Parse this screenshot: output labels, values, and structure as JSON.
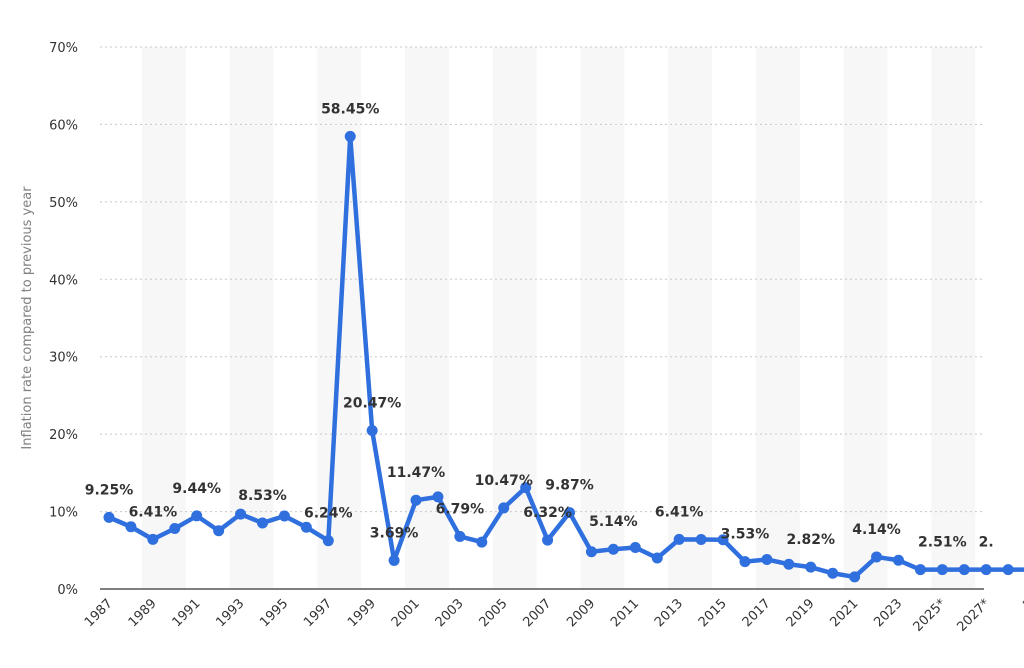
{
  "chart_data": {
    "type": "line",
    "ylabel": "Inflation rate compared to previous year",
    "xlabel": "",
    "ylim": [
      0,
      70
    ],
    "yticks": [
      0,
      10,
      20,
      30,
      40,
      50,
      60,
      70
    ],
    "ytick_suffix": "%",
    "grid": true,
    "categories": [
      "1987",
      "1988",
      "1989",
      "1990",
      "1991",
      "1992",
      "1993",
      "1994",
      "1995",
      "1996",
      "1997",
      "1998",
      "1999",
      "2000",
      "2001",
      "2002",
      "2003",
      "2004",
      "2005",
      "2006",
      "2007",
      "2008",
      "2009",
      "2010",
      "2011",
      "2012",
      "2013",
      "2014",
      "2015",
      "2016",
      "2017",
      "2018",
      "2019",
      "2020",
      "2021",
      "2022",
      "2023",
      "2024",
      "2025*",
      "2026*",
      "2027*",
      "2028*",
      "2029*"
    ],
    "xtick_labels": [
      "1987",
      "1989",
      "1991",
      "1993",
      "1995",
      "1997",
      "1999",
      "2001",
      "2003",
      "2005",
      "2007",
      "2009",
      "2011",
      "2013",
      "2015",
      "2017",
      "2019",
      "2021",
      "2023",
      "2025*",
      "2027*",
      "2"
    ],
    "series": [
      {
        "color": "#2f6fde",
        "values": [
          9.25,
          8.04,
          6.41,
          7.81,
          9.44,
          7.53,
          9.67,
          8.53,
          9.43,
          7.97,
          6.24,
          58.45,
          20.47,
          3.69,
          11.47,
          11.9,
          6.79,
          6.06,
          10.47,
          13.1,
          6.32,
          9.87,
          4.81,
          5.14,
          5.36,
          4.0,
          6.41,
          6.39,
          6.36,
          3.53,
          3.81,
          3.2,
          2.82,
          2.03,
          1.56,
          4.14,
          3.71,
          2.5,
          2.51,
          2.5,
          2.5,
          2.5,
          2.5
        ]
      }
    ],
    "data_labels": [
      {
        "index": 0,
        "text": "9.25%"
      },
      {
        "index": 2,
        "text": "6.41%"
      },
      {
        "index": 4,
        "text": "9.44%"
      },
      {
        "index": 7,
        "text": "8.53%"
      },
      {
        "index": 10,
        "text": "6.24%"
      },
      {
        "index": 11,
        "text": "58.45%"
      },
      {
        "index": 12,
        "text": "20.47%"
      },
      {
        "index": 13,
        "text": "3.69%"
      },
      {
        "index": 14,
        "text": "11.47%"
      },
      {
        "index": 16,
        "text": "6.79%"
      },
      {
        "index": 18,
        "text": "10.47%"
      },
      {
        "index": 20,
        "text": "6.32%"
      },
      {
        "index": 21,
        "text": "9.87%"
      },
      {
        "index": 23,
        "text": "5.14%"
      },
      {
        "index": 26,
        "text": "6.41%"
      },
      {
        "index": 29,
        "text": "3.53%"
      },
      {
        "index": 32,
        "text": "2.82%"
      },
      {
        "index": 35,
        "text": "4.14%"
      },
      {
        "index": 38,
        "text": "2.51%"
      },
      {
        "index": 40,
        "text": "2."
      }
    ]
  }
}
